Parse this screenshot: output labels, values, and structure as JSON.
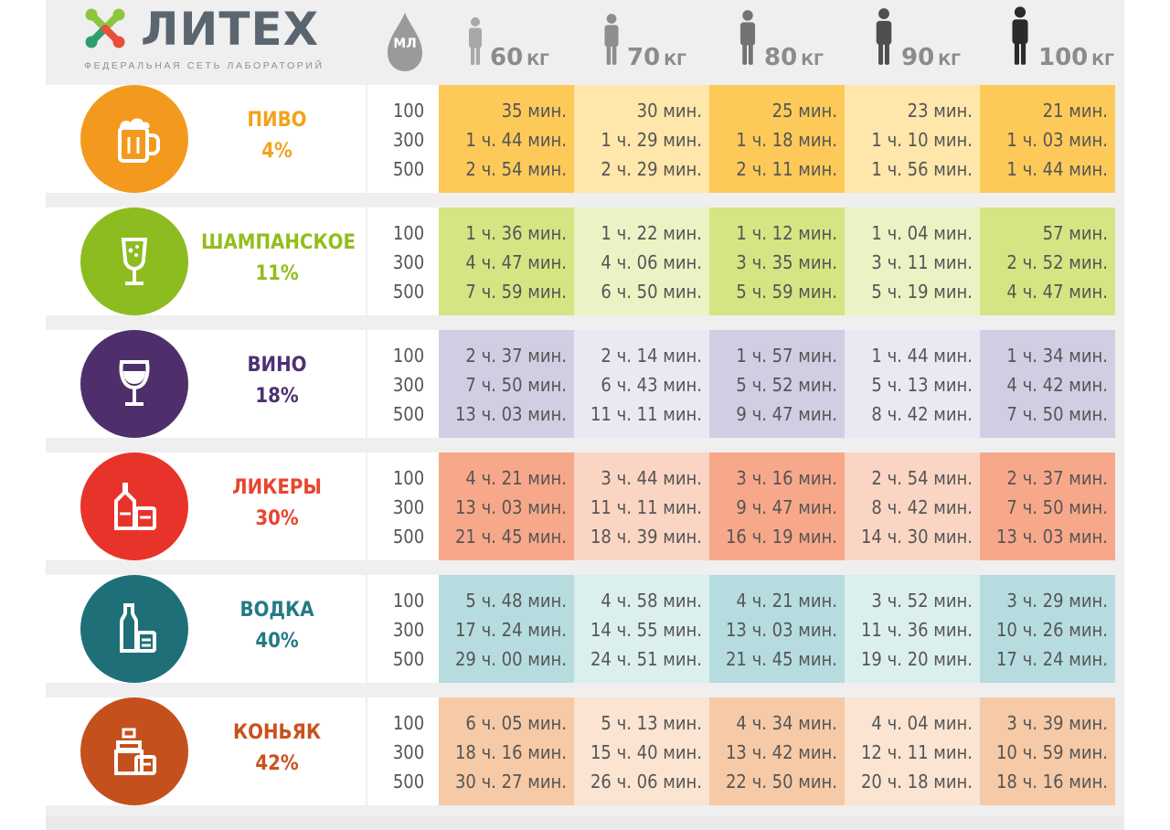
{
  "brand": {
    "name": "ЛИТЕХ",
    "subtitle": "ФЕДЕРАЛЬНАЯ СЕТЬ ЛАБОРАТОРИЙ",
    "colors": [
      "#8cc63f",
      "#2e9e6b",
      "#e8503a"
    ]
  },
  "header": {
    "volume_label": "МЛ",
    "volume_icon": "drop-icon",
    "weights": [
      {
        "value": "60",
        "unit": "КГ",
        "icon": "person-icon",
        "color": "#a8a8a8"
      },
      {
        "value": "70",
        "unit": "КГ",
        "icon": "person-icon",
        "color": "#8e8e8e"
      },
      {
        "value": "80",
        "unit": "КГ",
        "icon": "person-icon",
        "color": "#737373"
      },
      {
        "value": "90",
        "unit": "КГ",
        "icon": "person-icon",
        "color": "#4f4f4f"
      },
      {
        "value": "100",
        "unit": "КГ",
        "icon": "person-icon",
        "color": "#2b2b2b"
      }
    ]
  },
  "volumes": [
    "100",
    "300",
    "500"
  ],
  "drinks": [
    {
      "name": "ПИВО",
      "percent": "4%",
      "icon": "beer-mug-icon",
      "color": "#f39a1e",
      "text_color": "#f4a21b",
      "cell_colors": [
        "#fdca5a",
        "#ffe6ab",
        "#fdca5a",
        "#ffe6ab",
        "#fdca5a"
      ],
      "times": [
        [
          "35 мин.",
          "1 ч. 44 мин.",
          "2 ч. 54 мин."
        ],
        [
          "30 мин.",
          "1 ч. 29 мин.",
          "2 ч. 29 мин."
        ],
        [
          "25 мин.",
          "1 ч. 18 мин.",
          "2 ч. 11 мин."
        ],
        [
          "23 мин.",
          "1 ч. 10 мин.",
          "1 ч. 56 мин."
        ],
        [
          "21 мин.",
          "1 ч. 03 мин.",
          "1 ч. 44 мин."
        ]
      ]
    },
    {
      "name": "ШАМПАНСКОЕ",
      "percent": "11%",
      "icon": "champagne-glass-icon",
      "color": "#8cbc1f",
      "text_color": "#94bd1b",
      "cell_colors": [
        "#d4e684",
        "#eaf3c4",
        "#d4e684",
        "#eaf3c4",
        "#d4e684"
      ],
      "times": [
        [
          "1 ч. 36 мин.",
          "4 ч. 47 мин.",
          "7 ч. 59 мин."
        ],
        [
          "1 ч. 22 мин.",
          "4 ч. 06 мин.",
          "6 ч. 50 мин."
        ],
        [
          "1 ч. 12 мин.",
          "3 ч. 35 мин.",
          "5 ч. 59 мин."
        ],
        [
          "1 ч. 04 мин.",
          "3 ч. 11 мин.",
          "5 ч. 19 мин."
        ],
        [
          "57 мин.",
          "2 ч. 52 мин.",
          "4 ч. 47 мин."
        ]
      ]
    },
    {
      "name": "ВИНО",
      "percent": "18%",
      "icon": "wine-glass-icon",
      "color": "#4f2f6b",
      "text_color": "#4d3173",
      "cell_colors": [
        "#d3cde3",
        "#ebe8f3",
        "#d3cde3",
        "#ebe8f3",
        "#d3cde3"
      ],
      "times": [
        [
          "2 ч. 37 мин.",
          "7 ч. 50 мин.",
          "13 ч. 03 мин."
        ],
        [
          "2 ч. 14 мин.",
          "6 ч. 43 мин.",
          "11 ч. 11 мин."
        ],
        [
          "1 ч. 57 мин.",
          "5 ч. 52 мин.",
          "9 ч. 47 мин."
        ],
        [
          "1 ч. 44 мин.",
          "5 ч. 13 мин.",
          "8 ч. 42 мин."
        ],
        [
          "1 ч. 34 мин.",
          "4 ч. 42 мин.",
          "7 ч. 50 мин."
        ]
      ]
    },
    {
      "name": "ЛИКЕРЫ",
      "percent": "30%",
      "icon": "liqueur-bottle-icon",
      "color": "#e8332a",
      "text_color": "#e8452e",
      "cell_colors": [
        "#f8a88a",
        "#fbd5c4",
        "#f8a88a",
        "#fbd5c4",
        "#f8a88a"
      ],
      "times": [
        [
          "4 ч. 21 мин.",
          "13 ч. 03 мин.",
          "21 ч. 45 мин."
        ],
        [
          "3 ч. 44 мин.",
          "11 ч. 11 мин.",
          "18 ч. 39 мин."
        ],
        [
          "3 ч. 16 мин.",
          "9 ч. 47 мин.",
          "16 ч. 19 мин."
        ],
        [
          "2 ч. 54 мин.",
          "8 ч. 42 мин.",
          "14 ч. 30 мин."
        ],
        [
          "2 ч. 37 мин.",
          "7 ч. 50 мин.",
          "13 ч. 03 мин."
        ]
      ]
    },
    {
      "name": "ВОДКА",
      "percent": "40%",
      "icon": "vodka-bottle-icon",
      "color": "#1f6f78",
      "text_color": "#257a84",
      "cell_colors": [
        "#b6dcdf",
        "#dcefef",
        "#b6dcdf",
        "#dcefef",
        "#b6dcdf"
      ],
      "times": [
        [
          "5 ч. 48 мин.",
          "17 ч. 24 мин.",
          "29 ч. 00 мин."
        ],
        [
          "4 ч. 58 мин.",
          "14 ч. 55 мин.",
          "24 ч. 51 мин."
        ],
        [
          "4 ч. 21 мин.",
          "13 ч. 03 мин.",
          "21 ч. 45 мин."
        ],
        [
          "3 ч. 52 мин.",
          "11 ч. 36 мин.",
          "19 ч. 20 мин."
        ],
        [
          "3 ч. 29 мин.",
          "10 ч. 26 мин.",
          "17 ч. 24 мин."
        ]
      ]
    },
    {
      "name": "КОНЬЯК",
      "percent": "42%",
      "icon": "cognac-bottle-icon",
      "color": "#c4501d",
      "text_color": "#c9521d",
      "cell_colors": [
        "#f6caa6",
        "#fbe4d1",
        "#f6caa6",
        "#fbe4d1",
        "#f6caa6"
      ],
      "times": [
        [
          "6 ч. 05 мин.",
          "18 ч. 16 мин.",
          "30 ч. 27 мин."
        ],
        [
          "5 ч. 13 мин.",
          "15 ч. 40 мин.",
          "26 ч. 06 мин."
        ],
        [
          "4 ч. 34 мин.",
          "13 ч. 42 мин.",
          "22 ч. 50 мин."
        ],
        [
          "4 ч. 04 мин.",
          "12 ч. 11 мин.",
          "20 ч. 18 мин."
        ],
        [
          "3 ч. 39 мин.",
          "10 ч. 59 мин.",
          "18 ч. 16 мин."
        ]
      ]
    }
  ]
}
